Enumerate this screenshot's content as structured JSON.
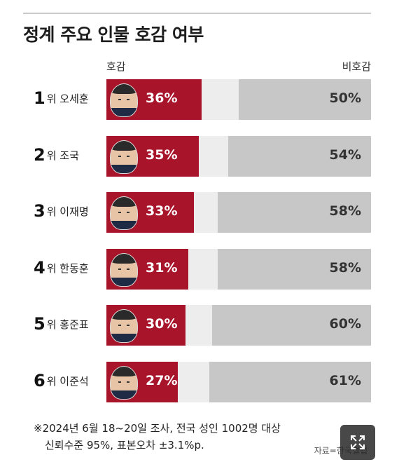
{
  "title": "정계 주요 인물 호감 여부",
  "legend": {
    "like": "호감",
    "dislike": "비호감"
  },
  "colors": {
    "like": "#a8152b",
    "dislike": "#c7c7c7",
    "neutral": "#ededed"
  },
  "chart_data": {
    "type": "bar",
    "title": "정계 주요 인물 호감 여부",
    "categories": [
      "오세훈",
      "조국",
      "이재명",
      "한동훈",
      "홍준표",
      "이준석"
    ],
    "ranks": [
      "1",
      "2",
      "3",
      "4",
      "5",
      "6"
    ],
    "rank_suffix": "위",
    "series": [
      {
        "name": "호감",
        "values": [
          36,
          35,
          33,
          31,
          30,
          27
        ]
      },
      {
        "name": "비호감",
        "values": [
          50,
          54,
          58,
          58,
          60,
          61
        ]
      }
    ],
    "unit": "%",
    "ylim": [
      0,
      100
    ]
  },
  "footnote": {
    "line1": "※2024년 6월 18~20일 조사, 전국 성인 1002명 대상",
    "line2": "신뢰수준 95%, 표본오차 ±3.1%p."
  },
  "source": "자료=한국갤럽",
  "expand_icon": "expand-icon"
}
